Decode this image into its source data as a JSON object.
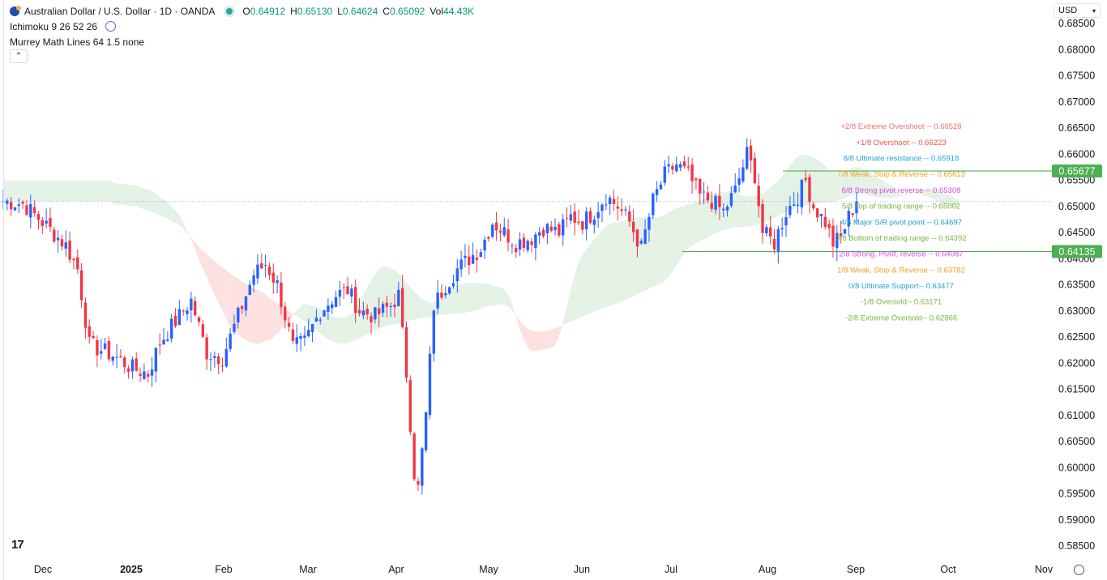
{
  "header": {
    "symbol_title": "Australian Dollar / U.S. Dollar · 1D · OANDA",
    "ohlc": [
      {
        "k": "O",
        "v": "0.64912"
      },
      {
        "k": "H",
        "v": "0.65130"
      },
      {
        "k": "L",
        "v": "0.64624"
      },
      {
        "k": "C",
        "v": "0.65092"
      },
      {
        "k": "Vol",
        "v": "44.43K"
      }
    ],
    "indicator_1": "Ichimoku 9 26 52 26",
    "indicator_2": "Murrey Math Lines 64 1.5 none",
    "currency": "USD"
  },
  "colors": {
    "up": "#2962ff",
    "down": "#f23645",
    "cloud_bear": "#fde0e0",
    "cloud_bull": "#e4f2e6",
    "hline": "#4caf50",
    "price_badge": "#4caf50"
  },
  "chart_data": {
    "type": "candlestick",
    "x_tick_labels": [
      "Dec",
      "2025",
      "Feb",
      "Mar",
      "Apr",
      "May",
      "Jun",
      "Jul",
      "Aug",
      "Sep",
      "Oct",
      "Nov"
    ],
    "y_tick_labels": [
      "0.68500",
      "0.68000",
      "0.67500",
      "0.67000",
      "0.66500",
      "0.66000",
      "0.65500",
      "0.65000",
      "0.64500",
      "0.64000",
      "0.63500",
      "0.63000",
      "0.62500",
      "0.62000",
      "0.61500",
      "0.61000",
      "0.60500",
      "0.60000",
      "0.59500",
      "0.59000",
      "0.58500"
    ],
    "y_range": [
      0.584,
      0.6865
    ],
    "price_badges": [
      {
        "value": "0.65677",
        "price": 0.65677
      },
      {
        "value": "0.64135",
        "price": 0.64135
      }
    ],
    "murrey_lines": [
      {
        "label": "+2/8 Extreme Overshoot --",
        "value": "0.66528",
        "price": 0.66528,
        "color": "#e57373"
      },
      {
        "label": "+1/8 Overshoot --",
        "value": "0.66223",
        "price": 0.66223,
        "color": "#ef5350"
      },
      {
        "label": "8/8 Ultimate resistance --",
        "value": "0.65918",
        "price": 0.65918,
        "color": "#26a0da"
      },
      {
        "label": "7/8 Weak, Stop & Reverse --",
        "value": "0.65613",
        "price": 0.65613,
        "color": "#f2a01e"
      },
      {
        "label": "6/8 Strong pivot reverse --",
        "value": "0.65308",
        "price": 0.65308,
        "color": "#d64ce0"
      },
      {
        "label": "5/8 Top of trading range --",
        "value": "0.65002",
        "price": 0.65002,
        "color": "#7cb342"
      },
      {
        "label": "4/8 Major S/R pivot point --",
        "value": "0.64697",
        "price": 0.64697,
        "color": "#1aa3c7"
      },
      {
        "label": "3/8 Bottom of trading range --",
        "value": "0.64392",
        "price": 0.64392,
        "color": "#7cb342"
      },
      {
        "label": "2/8 Strong, Pivot, reverse --",
        "value": "0.64087",
        "price": 0.64087,
        "color": "#d64ce0"
      },
      {
        "label": "1/8 Weak, Stop & Reverse --",
        "value": "0.63782",
        "price": 0.63782,
        "color": "#f2a01e"
      },
      {
        "label": "0/8 Ultimate Support--",
        "value": "0.63477",
        "price": 0.63477,
        "color": "#26a0da"
      },
      {
        "label": "-1/8 Oversold--",
        "value": "0.63171",
        "price": 0.63171,
        "color": "#7cb342"
      },
      {
        "label": "-2/8 Extreme Oversold--",
        "value": "0.62866",
        "price": 0.62866,
        "color": "#7cb342"
      }
    ],
    "last_close": 0.65092,
    "anchors": [
      [
        0,
        0.651
      ],
      [
        5,
        0.6505
      ],
      [
        10,
        0.647
      ],
      [
        16,
        0.6425
      ],
      [
        19,
        0.638
      ],
      [
        22,
        0.6235
      ],
      [
        28,
        0.6215
      ],
      [
        33,
        0.619
      ],
      [
        37,
        0.618
      ],
      [
        40,
        0.624
      ],
      [
        45,
        0.629
      ],
      [
        48,
        0.632
      ],
      [
        52,
        0.622
      ],
      [
        56,
        0.621
      ],
      [
        60,
        0.629
      ],
      [
        64,
        0.637
      ],
      [
        67,
        0.639
      ],
      [
        70,
        0.635
      ],
      [
        74,
        0.623
      ],
      [
        77,
        0.624
      ],
      [
        81,
        0.63
      ],
      [
        85,
        0.633
      ],
      [
        88,
        0.634
      ],
      [
        91,
        0.63
      ],
      [
        95,
        0.629
      ],
      [
        99,
        0.631
      ],
      [
        101,
        0.633
      ],
      [
        103,
        0.618
      ],
      [
        105,
        0.599
      ],
      [
        106,
        0.596
      ],
      [
        108,
        0.61
      ],
      [
        110,
        0.631
      ],
      [
        113,
        0.635
      ],
      [
        116,
        0.638
      ],
      [
        119,
        0.64
      ],
      [
        122,
        0.642
      ],
      [
        125,
        0.647
      ],
      [
        128,
        0.645
      ],
      [
        131,
        0.643
      ],
      [
        135,
        0.644
      ],
      [
        138,
        0.646
      ],
      [
        142,
        0.645
      ],
      [
        145,
        0.648
      ],
      [
        148,
        0.647
      ],
      [
        151,
        0.649
      ],
      [
        154,
        0.652
      ],
      [
        157,
        0.65
      ],
      [
        160,
        0.647
      ],
      [
        163,
        0.642
      ],
      [
        166,
        0.651
      ],
      [
        169,
        0.656
      ],
      [
        172,
        0.658
      ],
      [
        175,
        0.656
      ],
      [
        178,
        0.652
      ],
      [
        181,
        0.651
      ],
      [
        184,
        0.649
      ],
      [
        187,
        0.653
      ],
      [
        190,
        0.66
      ],
      [
        192,
        0.656
      ],
      [
        194,
        0.645
      ],
      [
        197,
        0.643
      ],
      [
        200,
        0.649
      ],
      [
        203,
        0.652
      ],
      [
        205,
        0.655
      ],
      [
        207,
        0.65
      ],
      [
        210,
        0.647
      ],
      [
        212,
        0.643
      ],
      [
        214,
        0.644
      ],
      [
        216,
        0.648
      ],
      [
        218,
        0.651
      ]
    ]
  }
}
